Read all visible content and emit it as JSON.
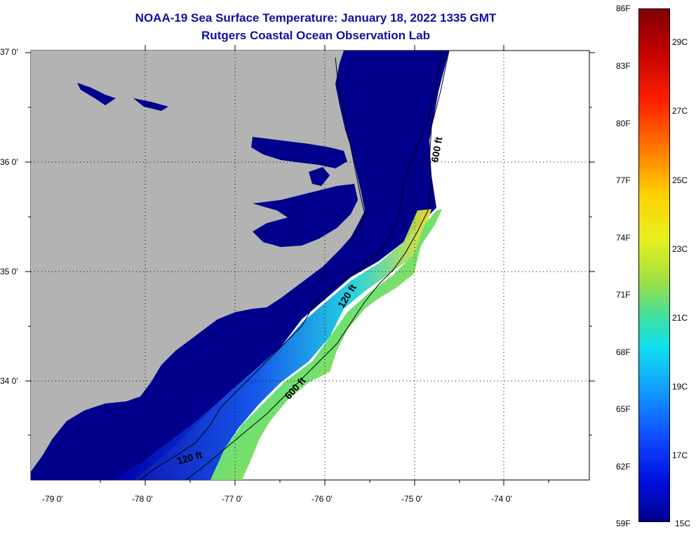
{
  "title": "NOAA-19 Sea Surface Temperature:  January 18, 2022 1335 GMT",
  "subtitle": "Rutgers Coastal Ocean Observation Lab",
  "axes": {
    "lat_labels": [
      "37 0'",
      "36 0'",
      "35 0'",
      "34 0'"
    ],
    "lon_labels": [
      "-79 0'",
      "-78 0'",
      "-77 0'",
      "-76 0'",
      "-75 0'",
      "-74 0'"
    ]
  },
  "contours": {
    "c600a": "600 ft",
    "c600b": "600 ft",
    "c120a": "120 ft",
    "c120b": "120 ft"
  },
  "colorbar": {
    "f_labels": [
      "86F",
      "83F",
      "80F",
      "77F",
      "74F",
      "71F",
      "68F",
      "65F",
      "62F",
      "59F"
    ],
    "c_labels": [
      "29C",
      "27C",
      "25C",
      "23C",
      "21C",
      "19C",
      "17C",
      "15C"
    ]
  },
  "colors": {
    "land": "#b3b3b3",
    "cold": "#00008c",
    "title": "#1010a0"
  }
}
